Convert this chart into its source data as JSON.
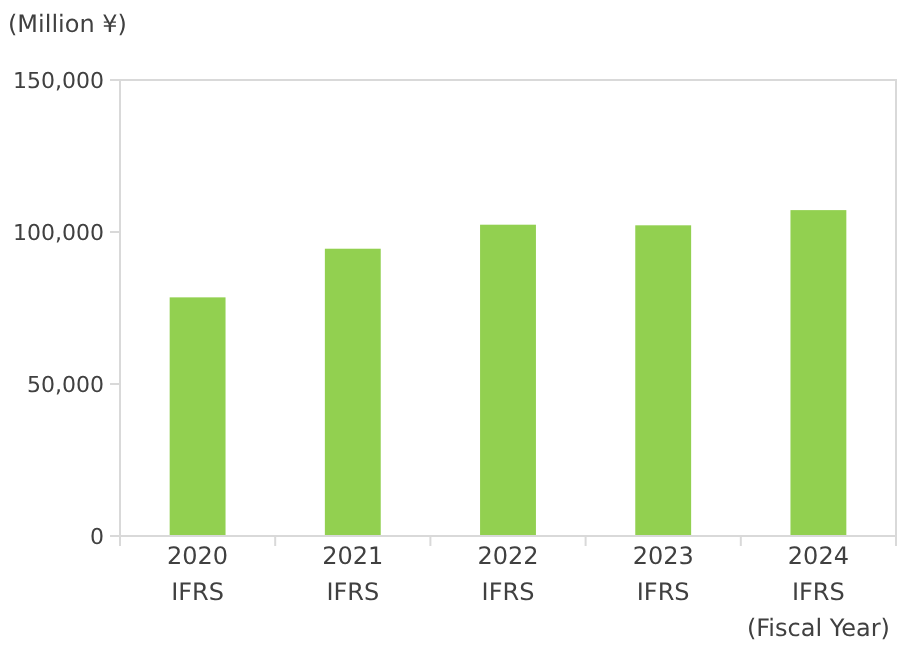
{
  "chart_data": {
    "type": "bar",
    "ylabel": "(Million ¥)",
    "xlabel": "(Fiscal Year)",
    "categories": [
      "2020\nIFRS",
      "2021\nIFRS",
      "2022\nIFRS",
      "2023\nIFRS",
      "2024\nIFRS"
    ],
    "values": [
      78500,
      94500,
      102400,
      102200,
      107200
    ],
    "color": "#92d050",
    "ylim": [
      0,
      150000
    ],
    "yticks": [
      {
        "value": 0,
        "label": "0"
      },
      {
        "value": 50000,
        "label": "50,000"
      },
      {
        "value": 100000,
        "label": "100,000"
      },
      {
        "value": 150000,
        "label": "150,000"
      }
    ],
    "grid": false
  }
}
